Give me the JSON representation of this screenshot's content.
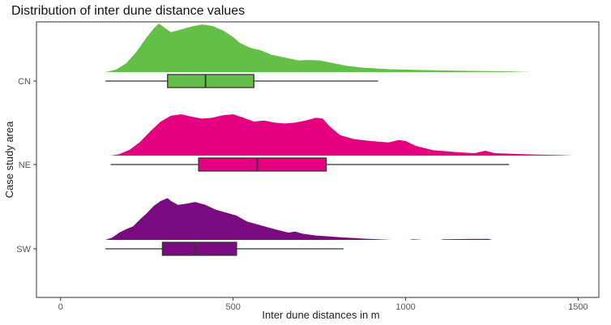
{
  "chart_data": {
    "type": "raincloud",
    "title": "Distribution of inter dune distance values",
    "xlabel": "Inter dune distances in m",
    "ylabel": "Case study area",
    "xlim": [
      -70,
      1560
    ],
    "xticks": [
      0,
      500,
      1000,
      1500
    ],
    "xtick_labels": [
      "0",
      "500",
      "1000",
      "1500"
    ],
    "grid": false,
    "legend": "none",
    "categories": [
      "CN",
      "NE",
      "SW"
    ],
    "series": [
      {
        "name": "CN",
        "color": "#63BF47",
        "box": {
          "min": 130,
          "q1": 310,
          "median": 420,
          "q3": 560,
          "max": 920
        },
        "density": [
          [
            130,
            0.0
          ],
          [
            160,
            0.05
          ],
          [
            190,
            0.18
          ],
          [
            220,
            0.42
          ],
          [
            250,
            0.72
          ],
          [
            270,
            0.9
          ],
          [
            285,
            1.0
          ],
          [
            300,
            0.92
          ],
          [
            320,
            0.82
          ],
          [
            350,
            0.88
          ],
          [
            380,
            0.94
          ],
          [
            410,
            0.98
          ],
          [
            440,
            0.95
          ],
          [
            470,
            0.86
          ],
          [
            500,
            0.72
          ],
          [
            520,
            0.6
          ],
          [
            550,
            0.5
          ],
          [
            580,
            0.45
          ],
          [
            610,
            0.36
          ],
          [
            650,
            0.3
          ],
          [
            690,
            0.24
          ],
          [
            720,
            0.25
          ],
          [
            750,
            0.24
          ],
          [
            780,
            0.2
          ],
          [
            800,
            0.17
          ],
          [
            830,
            0.13
          ],
          [
            880,
            0.09
          ],
          [
            950,
            0.06
          ],
          [
            1030,
            0.045
          ],
          [
            1100,
            0.035
          ],
          [
            1200,
            0.025
          ],
          [
            1300,
            0.015
          ],
          [
            1365,
            0.0
          ]
        ]
      },
      {
        "name": "NE",
        "color": "#E4007F",
        "box": {
          "min": 145,
          "q1": 400,
          "median": 570,
          "q3": 770,
          "max": 1300
        },
        "density": [
          [
            145,
            0.0
          ],
          [
            170,
            0.03
          ],
          [
            200,
            0.12
          ],
          [
            230,
            0.28
          ],
          [
            260,
            0.5
          ],
          [
            290,
            0.7
          ],
          [
            320,
            0.82
          ],
          [
            350,
            0.85
          ],
          [
            380,
            0.8
          ],
          [
            410,
            0.76
          ],
          [
            440,
            0.78
          ],
          [
            470,
            0.83
          ],
          [
            500,
            0.85
          ],
          [
            530,
            0.78
          ],
          [
            560,
            0.7
          ],
          [
            590,
            0.72
          ],
          [
            620,
            0.68
          ],
          [
            650,
            0.66
          ],
          [
            680,
            0.68
          ],
          [
            710,
            0.72
          ],
          [
            740,
            0.78
          ],
          [
            760,
            0.76
          ],
          [
            780,
            0.6
          ],
          [
            810,
            0.42
          ],
          [
            850,
            0.34
          ],
          [
            900,
            0.3
          ],
          [
            950,
            0.27
          ],
          [
            980,
            0.32
          ],
          [
            1000,
            0.3
          ],
          [
            1030,
            0.2
          ],
          [
            1080,
            0.11
          ],
          [
            1150,
            0.07
          ],
          [
            1200,
            0.05
          ],
          [
            1230,
            0.1
          ],
          [
            1260,
            0.05
          ],
          [
            1300,
            0.04
          ],
          [
            1380,
            0.02
          ],
          [
            1450,
            0.01
          ],
          [
            1485,
            0.0
          ]
        ]
      },
      {
        "name": "SW",
        "color": "#7A0A7F",
        "box": {
          "min": 130,
          "q1": 295,
          "median": 390,
          "q3": 510,
          "max": 820
        },
        "density": [
          [
            130,
            0.0
          ],
          [
            150,
            0.05
          ],
          [
            170,
            0.15
          ],
          [
            190,
            0.22
          ],
          [
            210,
            0.28
          ],
          [
            230,
            0.42
          ],
          [
            250,
            0.55
          ],
          [
            270,
            0.7
          ],
          [
            290,
            0.8
          ],
          [
            310,
            0.86
          ],
          [
            320,
            0.8
          ],
          [
            340,
            0.72
          ],
          [
            360,
            0.74
          ],
          [
            390,
            0.78
          ],
          [
            420,
            0.72
          ],
          [
            450,
            0.62
          ],
          [
            480,
            0.56
          ],
          [
            510,
            0.5
          ],
          [
            540,
            0.38
          ],
          [
            580,
            0.3
          ],
          [
            620,
            0.22
          ],
          [
            660,
            0.15
          ],
          [
            680,
            0.17
          ],
          [
            700,
            0.13
          ],
          [
            740,
            0.09
          ],
          [
            780,
            0.07
          ],
          [
            820,
            0.05
          ],
          [
            850,
            0.04
          ],
          [
            880,
            0.025
          ],
          [
            920,
            0.012
          ],
          [
            960,
            0.0
          ],
          [
            1010,
            0.0
          ],
          [
            1020,
            0.012
          ],
          [
            1050,
            0.0
          ],
          [
            1100,
            0.0
          ],
          [
            1110,
            0.012
          ],
          [
            1180,
            0.018
          ],
          [
            1240,
            0.02
          ],
          [
            1250,
            0.0
          ]
        ]
      }
    ]
  }
}
